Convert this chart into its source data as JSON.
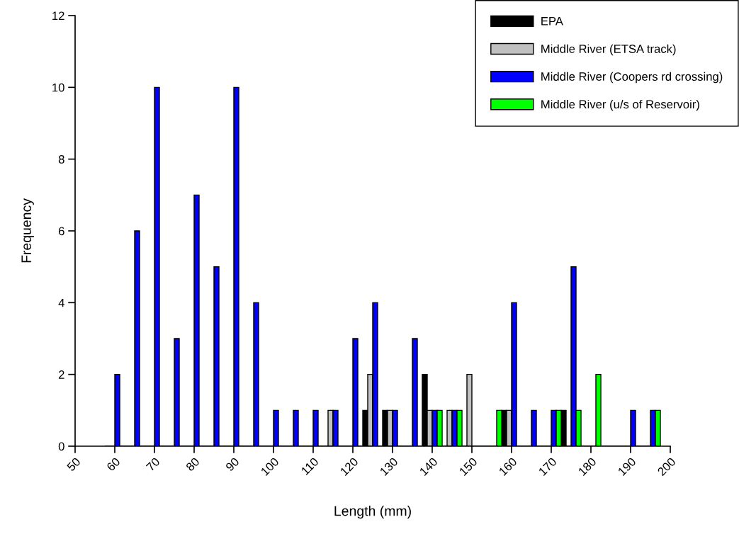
{
  "chart_data": {
    "type": "bar",
    "xlabel": "Length (mm)",
    "ylabel": "Frequency",
    "x": [
      60,
      65,
      70,
      75,
      80,
      85,
      90,
      95,
      100,
      105,
      110,
      115,
      120,
      125,
      130,
      135,
      140,
      145,
      150,
      155,
      160,
      165,
      170,
      175,
      180,
      185,
      190,
      195
    ],
    "series": [
      {
        "name": "EPA",
        "color": "#000000",
        "values": [
          0,
          0,
          0,
          0,
          0,
          0,
          0,
          0,
          0,
          0,
          0,
          0,
          0,
          1,
          1,
          0,
          2,
          0,
          0,
          0,
          1,
          0,
          0,
          1,
          0,
          0,
          0,
          0
        ]
      },
      {
        "name": "Middle River (ETSA track)",
        "color": "#c0c0c0",
        "values": [
          0,
          0,
          0,
          0,
          0,
          0,
          0,
          0,
          0,
          0,
          0,
          1,
          0,
          2,
          1,
          0,
          1,
          1,
          2,
          0,
          1,
          0,
          0,
          0,
          0,
          0,
          0,
          0
        ]
      },
      {
        "name": "Middle River (Coopers rd crossing)",
        "color": "#0000ff",
        "values": [
          2,
          6,
          10,
          3,
          7,
          5,
          10,
          4,
          1,
          1,
          1,
          1,
          3,
          4,
          1,
          3,
          1,
          1,
          0,
          0,
          4,
          1,
          1,
          5,
          0,
          0,
          1,
          1
        ]
      },
      {
        "name": "Middle River (u/s of Reservoir)",
        "color": "#00ff00",
        "values": [
          0,
          0,
          0,
          0,
          0,
          0,
          0,
          0,
          0,
          0,
          0,
          0,
          0,
          0,
          0,
          0,
          1,
          1,
          0,
          1,
          0,
          0,
          1,
          1,
          2,
          0,
          0,
          1
        ]
      }
    ],
    "xlim": [
      50,
      200
    ],
    "xticks": [
      50,
      60,
      70,
      80,
      90,
      100,
      110,
      120,
      130,
      140,
      150,
      160,
      170,
      180,
      190,
      200
    ],
    "ylim": [
      0,
      12
    ],
    "yticks": [
      0,
      2,
      4,
      6,
      8,
      10,
      12
    ],
    "grid": false,
    "legend": "top right"
  }
}
